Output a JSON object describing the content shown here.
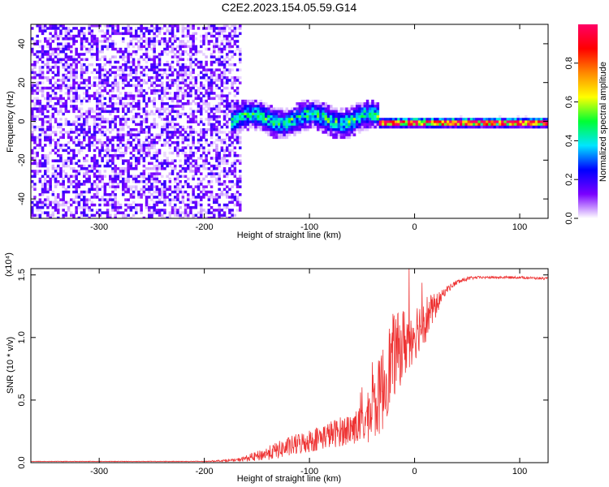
{
  "chart_data": [
    {
      "type": "heatmap",
      "title": "C2E2.2023.154.05.59.G14",
      "xlabel": "Height of straight line (km)",
      "ylabel": "Frequency (Hz)",
      "xlim": [
        -365,
        127
      ],
      "ylim": [
        -50,
        50
      ],
      "xticks": [
        -300,
        -200,
        -100,
        0,
        100
      ],
      "yticks": [
        -40,
        -20,
        0,
        20,
        40
      ],
      "colorbar": {
        "label": "Normalized spectral amplitude",
        "range": [
          0,
          1
        ],
        "ticks": [
          "0.0",
          "0.2",
          "0.4",
          "0.6",
          "0.8"
        ],
        "colormap": [
          "#ffffff",
          "#7a00ff",
          "#0000ff",
          "#00e5ff",
          "#00ff33",
          "#ffff00",
          "#ff8800",
          "#ff0000",
          "#ff0066"
        ]
      },
      "grid": false,
      "regions": [
        {
          "name": "noise",
          "x_range": [
            -365,
            -165
          ],
          "y_range": [
            -50,
            50
          ],
          "amplitude": 0.1
        },
        {
          "name": "signal_broad",
          "x_range": [
            -175,
            -35
          ],
          "center_freq": 2,
          "half_width": 5,
          "amplitude": 0.35
        },
        {
          "name": "signal_narrow",
          "x_range": [
            -35,
            127
          ],
          "center_freq": 0,
          "half_width": 2,
          "amplitude": 0.9
        }
      ]
    },
    {
      "type": "line",
      "xlabel": "Height of straight line (km)",
      "ylabel": "SNR (10 * v/v)",
      "scale_label": "(x10⁴)",
      "xlim": [
        -365,
        127
      ],
      "ylim": [
        0,
        1.55
      ],
      "xticks": [
        -300,
        -200,
        -100,
        0,
        100
      ],
      "yticks": [
        "0.0",
        "0.5",
        "1.0",
        "1.5"
      ],
      "grid": false,
      "series": [
        {
          "color": "#ee3333",
          "x": [
            -365,
            -300,
            -250,
            -200,
            -170,
            -150,
            -130,
            -110,
            -90,
            -70,
            -50,
            -40,
            -30,
            -25,
            -20,
            -15,
            -10,
            -5,
            0,
            5,
            10,
            15,
            20,
            25,
            30,
            40,
            50,
            60,
            80,
            100,
            127
          ],
          "values": [
            0.01,
            0.01,
            0.01,
            0.01,
            0.02,
            0.05,
            0.1,
            0.15,
            0.2,
            0.25,
            0.3,
            0.4,
            0.6,
            0.75,
            0.85,
            0.9,
            0.95,
            1.0,
            1.05,
            1.1,
            1.15,
            1.2,
            1.25,
            1.32,
            1.38,
            1.44,
            1.47,
            1.48,
            1.48,
            1.48,
            1.47
          ],
          "noise": [
            0.002,
            0.002,
            0.002,
            0.003,
            0.01,
            0.04,
            0.07,
            0.09,
            0.1,
            0.12,
            0.15,
            0.25,
            0.35,
            0.35,
            0.35,
            0.3,
            0.3,
            0.25,
            0.25,
            0.2,
            0.2,
            0.15,
            0.1,
            0.05,
            0.03,
            0.02,
            0.015,
            0.01,
            0.01,
            0.01,
            0.01
          ]
        }
      ]
    }
  ]
}
